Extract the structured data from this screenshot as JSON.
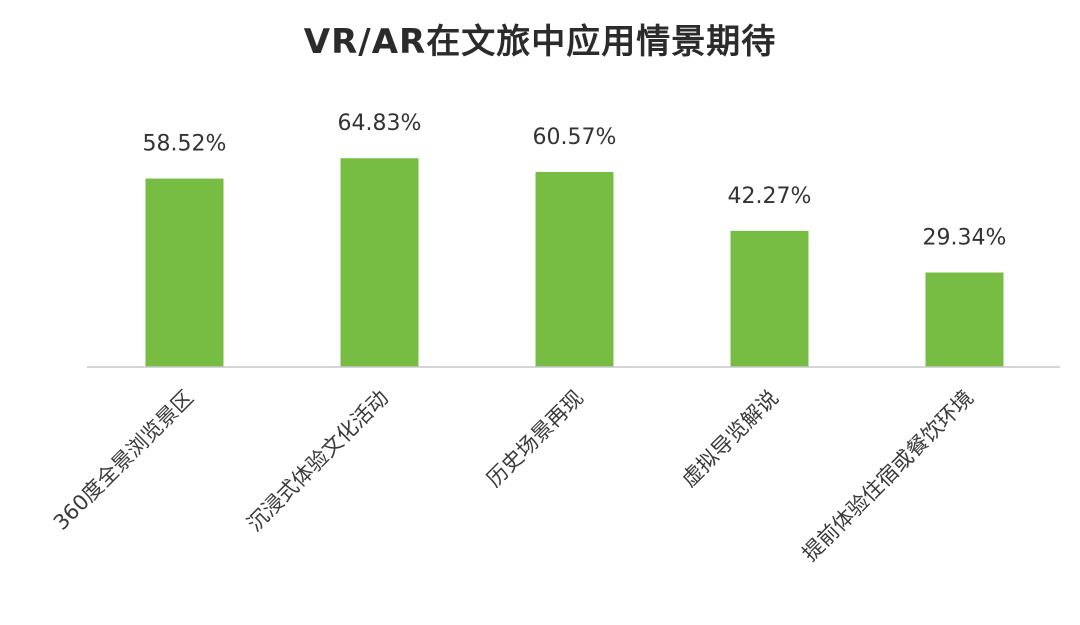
{
  "chart_data": {
    "type": "bar",
    "title": "VR/AR在文旅中应用情景期待",
    "categories": [
      "360度全景浏览景区",
      "沉浸式体验文化活动",
      "历史场景再现",
      "虚拟导览解说",
      "提前体验住宿或餐饮环境"
    ],
    "values": [
      58.52,
      64.83,
      60.57,
      42.27,
      29.34
    ],
    "value_labels": [
      "58.52%",
      "64.83%",
      "60.57%",
      "42.27%",
      "29.34%"
    ],
    "xlabel": "",
    "ylabel": "",
    "bar_color": "#77bd43",
    "axis_color": "#c8c8c8",
    "grid": false,
    "legend": "none"
  }
}
